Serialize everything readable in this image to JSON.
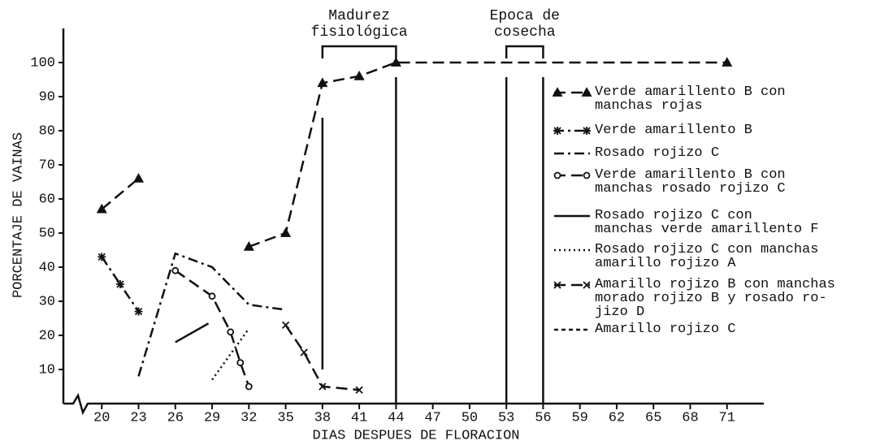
{
  "chart_data": {
    "type": "line",
    "xlabel": "DIAS DESPUES DE FLORACION",
    "ylabel": "PORCENTAJE DE VAINAS",
    "xlim": [
      17,
      74
    ],
    "ylim": [
      0,
      110
    ],
    "xticks": [
      20,
      23,
      26,
      29,
      32,
      35,
      38,
      41,
      44,
      47,
      50,
      53,
      56,
      59,
      62,
      65,
      68,
      71
    ],
    "yticks": [
      10,
      20,
      30,
      40,
      50,
      60,
      70,
      80,
      90,
      100
    ],
    "vlines": [
      38,
      44,
      53,
      56
    ],
    "annotations": [
      {
        "text": "Madurez\nfisiológica",
        "from": 38,
        "to": 44
      },
      {
        "text": "Epoca de\ncosecha",
        "from": 53,
        "to": 56
      }
    ],
    "series": [
      {
        "name": "Verde amarillento B con\nmanchas rojas",
        "color": "#111",
        "dash": "dashed",
        "marker": "triangle",
        "x": [
          20,
          23,
          26,
          32,
          35,
          38,
          41,
          44,
          71
        ],
        "values": [
          57,
          66,
          null,
          46,
          50,
          94,
          96,
          100,
          100
        ]
      },
      {
        "name": "Verde amarillento B",
        "color": "#111",
        "dash": "dashdot",
        "marker": "star",
        "x": [
          20,
          21.5,
          23
        ],
        "values": [
          43,
          35,
          27
        ]
      },
      {
        "name": "Rosado rojizo C",
        "color": "#111",
        "dash": "dashdot",
        "marker": null,
        "x": [
          23,
          26,
          29,
          32,
          35
        ],
        "values": [
          8,
          44,
          40,
          29,
          27.5
        ]
      },
      {
        "name": "Verde amarillento B con\nmanchas rosado rojizo C",
        "color": "#111",
        "dash": "dashed",
        "marker": "circle",
        "x": [
          26,
          29,
          30.5,
          31.3,
          32
        ],
        "values": [
          39,
          31.5,
          21,
          12,
          5
        ]
      },
      {
        "name": "Rosado rojizo C con\nmanchas verde amarillento F",
        "color": "#111",
        "dash": "solid",
        "marker": null,
        "x": [
          26,
          28.7
        ],
        "values": [
          18,
          23.5
        ]
      },
      {
        "name": "Rosado rojizo C con manchas\namarillo rojizo A",
        "color": "#111",
        "dash": "dotted",
        "marker": null,
        "x": [
          29,
          32
        ],
        "values": [
          7,
          22
        ]
      },
      {
        "name": "Amarillo rojizo B con manchas\nmorado rojizo B y rosado ro-\njizo D",
        "color": "#111",
        "dash": "dashed",
        "marker": "x",
        "x": [
          35,
          36.5,
          38,
          41
        ],
        "values": [
          23,
          15,
          5,
          4
        ]
      },
      {
        "name": "Amarillo rojizo C",
        "color": "#111",
        "dash": "shortdash",
        "marker": null,
        "x": [],
        "values": []
      }
    ]
  }
}
